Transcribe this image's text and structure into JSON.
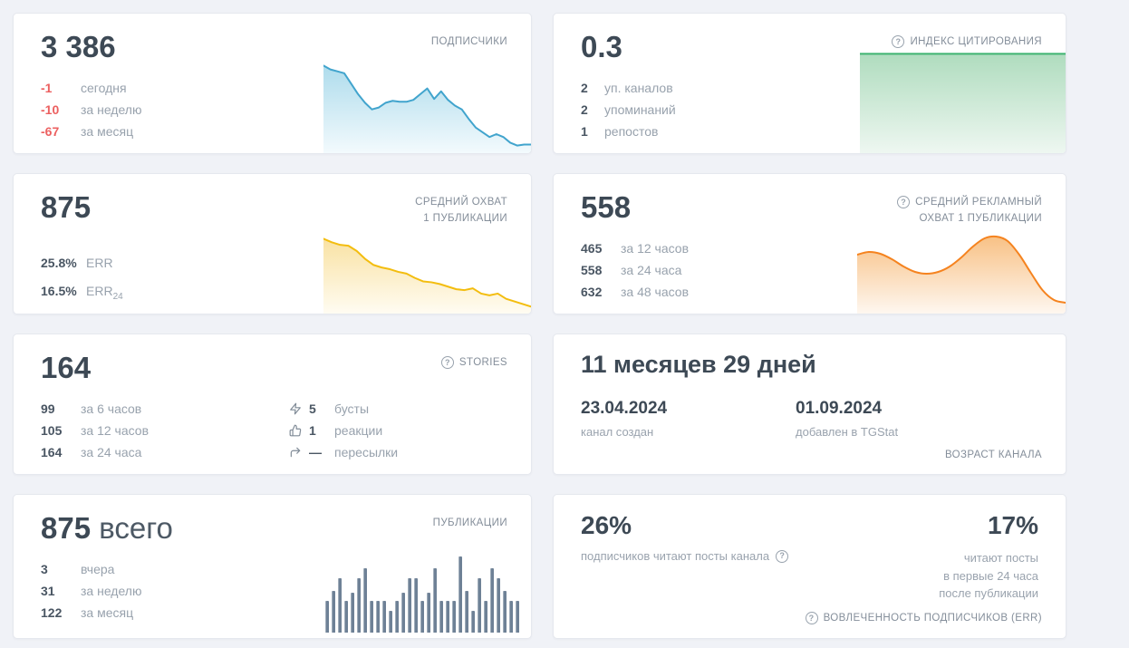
{
  "colors": {
    "page_bg": "#f0f2f7",
    "card_bg": "#ffffff",
    "big_number": "#3d4955",
    "stat_value": "#4a5663",
    "stat_label": "#98a2ad",
    "caption": "#848e9a",
    "negative_red": "#ec6060",
    "subscribers_line": "#41a4cd",
    "citation_line": "#3eb370",
    "avg_reach_line": "#f3bd0f",
    "ad_reach_line": "#f5831f",
    "bars": "#6e8196"
  },
  "icons": {
    "help_glyph": "?"
  },
  "cards": {
    "subscribers": {
      "title": "ПОДПИСЧИКИ",
      "value": "3 386",
      "stats": [
        {
          "value": "-1",
          "label": "сегодня"
        },
        {
          "value": "-10",
          "label": "за неделю"
        },
        {
          "value": "-67",
          "label": "за месяц"
        }
      ]
    },
    "citation_index": {
      "title": "ИНДЕКС ЦИТИРОВАНИЯ",
      "value": "0.3",
      "stats": [
        {
          "value": "2",
          "label": "уп. каналов"
        },
        {
          "value": "2",
          "label": "упоминаний"
        },
        {
          "value": "1",
          "label": "репостов"
        }
      ]
    },
    "avg_reach": {
      "title_line1": "СРЕДНИЙ ОХВАТ",
      "title_line2": "1 ПУБЛИКАЦИИ",
      "value": "875",
      "stats": [
        {
          "value": "25.8%",
          "label": "ERR",
          "sub": ""
        },
        {
          "value": "16.5%",
          "label": "ERR",
          "sub": "24"
        }
      ]
    },
    "avg_ad_reach": {
      "title_line1": "СРЕДНИЙ РЕКЛАМНЫЙ",
      "title_line2": "ОХВАТ 1 ПУБЛИКАЦИИ",
      "value": "558",
      "stats": [
        {
          "value": "465",
          "label": "за 12 часов"
        },
        {
          "value": "558",
          "label": "за 24 часа"
        },
        {
          "value": "632",
          "label": "за 48 часов"
        }
      ]
    },
    "stories": {
      "title": "STORIES",
      "value": "164",
      "stats": [
        {
          "value": "99",
          "label": "за 6 часов"
        },
        {
          "value": "105",
          "label": "за 12 часов"
        },
        {
          "value": "164",
          "label": "за 24 часа"
        }
      ],
      "engagement": [
        {
          "icon": "lightning-icon",
          "value": "5",
          "label": "бусты"
        },
        {
          "icon": "thumbs-up-icon",
          "value": "1",
          "label": "реакции"
        },
        {
          "icon": "forward-icon",
          "value": "—",
          "label": "пересылки"
        }
      ]
    },
    "channel_age": {
      "value": "11 месяцев 29 дней",
      "created_date": "23.04.2024",
      "created_label": "канал создан",
      "added_date": "01.09.2024",
      "added_label": "добавлен в TGStat",
      "footer": "ВОЗРАСТ КАНАЛА"
    },
    "publications": {
      "title": "ПУБЛИКАЦИИ",
      "value": "875",
      "value_suffix": "всего",
      "stats": [
        {
          "value": "3",
          "label": "вчера"
        },
        {
          "value": "31",
          "label": "за неделю"
        },
        {
          "value": "122",
          "label": "за месяц"
        }
      ]
    },
    "err": {
      "left_value": "26%",
      "left_label": "подписчиков читают посты канала",
      "right_value": "17%",
      "right_label_lines": [
        "читают посты",
        "в первые 24 часа",
        "после публикации"
      ],
      "footer": "ВОВЛЕЧЕННОСТЬ ПОДПИСЧИКОВ (ERR)"
    }
  },
  "chart_data": [
    {
      "type": "area",
      "name": "subscribers-trend",
      "title": "Подписчики — динамика (спарклайн без осей)",
      "ylim": [
        0,
        100
      ],
      "axes": false,
      "smooth": false,
      "values": [
        92,
        88,
        86,
        84,
        73,
        62,
        53,
        46,
        48,
        53,
        55,
        54,
        54,
        56,
        62,
        68,
        57,
        65,
        56,
        50,
        46,
        36,
        27,
        22,
        17,
        20,
        17,
        11,
        8,
        9,
        9
      ],
      "line_color": "#41a4cd",
      "fill_from": "#aedcec",
      "fill_to": "#f3fafd"
    },
    {
      "type": "area",
      "name": "citation-trend",
      "title": "Индекс цитирования — динамика (плоская линия)",
      "ylim": [
        0,
        100
      ],
      "axes": false,
      "smooth": false,
      "values": [
        97,
        97
      ],
      "line_color": "#3eb370",
      "fill_from": "#afdcbe",
      "fill_to": "#eef7f1"
    },
    {
      "type": "area",
      "name": "avg-reach-trend",
      "title": "Средний охват 1 публикации — динамика",
      "ylim": [
        0,
        100
      ],
      "axes": false,
      "smooth": false,
      "values": [
        86,
        82,
        79,
        78,
        72,
        63,
        56,
        53,
        51,
        48,
        46,
        41,
        37,
        36,
        34,
        31,
        28,
        27,
        29,
        23,
        21,
        23,
        17,
        14,
        11,
        8
      ],
      "line_color": "#f3bd0f",
      "fill_from": "#f9e2a3",
      "fill_to": "#fffcf2"
    },
    {
      "type": "area",
      "name": "ad-reach-trend",
      "title": "Средний рекламный охват 1 публикации — динамика",
      "ylim": [
        0,
        100
      ],
      "axes": false,
      "smooth": true,
      "values": [
        65,
        68,
        66,
        60,
        52,
        46,
        44,
        46,
        52,
        62,
        74,
        83,
        85,
        80,
        65,
        45,
        26,
        15,
        12
      ],
      "line_color": "#f5831f",
      "fill_from": "#f8c185",
      "fill_to": "#fef7f0"
    },
    {
      "type": "bar",
      "name": "publications-bars",
      "title": "Публикации по дням — за месяц",
      "ylim": [
        0,
        100
      ],
      "axes": false,
      "values": [
        42,
        55,
        72,
        42,
        52,
        72,
        85,
        42,
        42,
        42,
        28,
        42,
        52,
        72,
        72,
        42,
        52,
        85,
        42,
        42,
        42,
        100,
        55,
        28,
        72,
        42,
        85,
        72,
        55,
        42,
        42
      ],
      "bar_color": "#6e8196"
    }
  ]
}
